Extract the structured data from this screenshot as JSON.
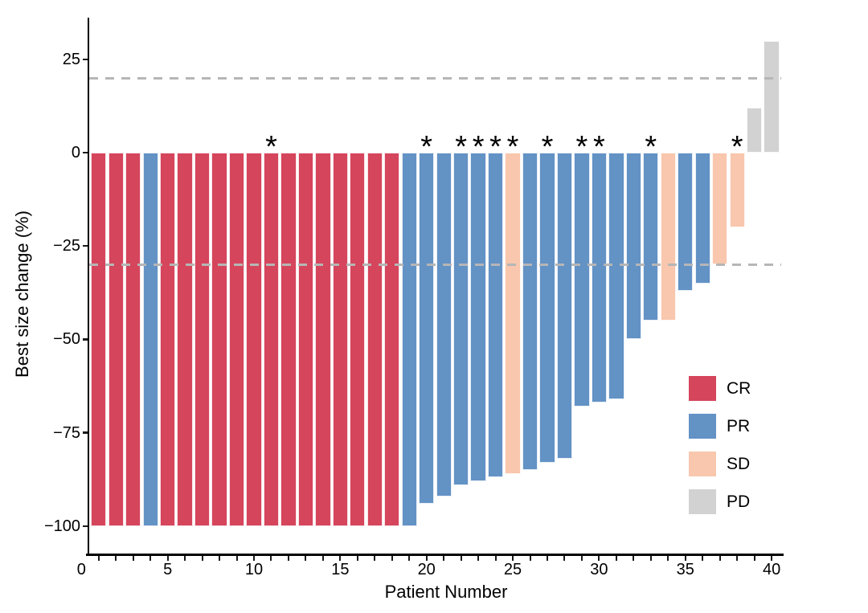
{
  "chart_data": {
    "type": "bar",
    "subtype": "waterfall",
    "title": "",
    "xlabel": "Patient Number",
    "ylabel": "Best size change (%)",
    "xlim": [
      0,
      40
    ],
    "ylim": [
      -107,
      33
    ],
    "grid": false,
    "x_major_ticks": [
      0,
      5,
      10,
      15,
      20,
      25,
      30,
      35,
      40
    ],
    "x_minor_tick_every": 1,
    "y_ticks": [
      25,
      0,
      -25,
      -50,
      -75,
      -100
    ],
    "y_tick_labels": [
      "25",
      "0",
      "−25",
      "−50",
      "−75",
      "−100"
    ],
    "reference_lines": [
      {
        "y": 20,
        "style": "dashed",
        "color": "#b6b6b6"
      },
      {
        "y": -30,
        "style": "dashed",
        "color": "#b6b6b6"
      }
    ],
    "annotation_symbol": "*",
    "annotation_meaning": "asterisk above bar",
    "legend_position": "right-lower",
    "legend": [
      {
        "label": "CR",
        "color": "#d5455c"
      },
      {
        "label": "PR",
        "color": "#6392c5"
      },
      {
        "label": "SD",
        "color": "#f8c7ad"
      },
      {
        "label": "PD",
        "color": "#d2d2d2"
      }
    ],
    "bar_width_fraction": 0.9,
    "patients": [
      {
        "n": 1,
        "value": -100,
        "response": "CR",
        "significant": false
      },
      {
        "n": 2,
        "value": -100,
        "response": "CR",
        "significant": false
      },
      {
        "n": 3,
        "value": -100,
        "response": "CR",
        "significant": false
      },
      {
        "n": 4,
        "value": -100,
        "response": "PR",
        "significant": false
      },
      {
        "n": 5,
        "value": -100,
        "response": "CR",
        "significant": false
      },
      {
        "n": 6,
        "value": -100,
        "response": "CR",
        "significant": false
      },
      {
        "n": 7,
        "value": -100,
        "response": "CR",
        "significant": false
      },
      {
        "n": 8,
        "value": -100,
        "response": "CR",
        "significant": false
      },
      {
        "n": 9,
        "value": -100,
        "response": "CR",
        "significant": false
      },
      {
        "n": 10,
        "value": -100,
        "response": "CR",
        "significant": false
      },
      {
        "n": 11,
        "value": -100,
        "response": "CR",
        "significant": true
      },
      {
        "n": 12,
        "value": -100,
        "response": "CR",
        "significant": false
      },
      {
        "n": 13,
        "value": -100,
        "response": "CR",
        "significant": false
      },
      {
        "n": 14,
        "value": -100,
        "response": "CR",
        "significant": false
      },
      {
        "n": 15,
        "value": -100,
        "response": "CR",
        "significant": false
      },
      {
        "n": 16,
        "value": -100,
        "response": "CR",
        "significant": false
      },
      {
        "n": 17,
        "value": -100,
        "response": "CR",
        "significant": false
      },
      {
        "n": 18,
        "value": -100,
        "response": "CR",
        "significant": false
      },
      {
        "n": 19,
        "value": -100,
        "response": "PR",
        "significant": false
      },
      {
        "n": 20,
        "value": -94,
        "response": "PR",
        "significant": true
      },
      {
        "n": 21,
        "value": -92,
        "response": "PR",
        "significant": false
      },
      {
        "n": 22,
        "value": -89,
        "response": "PR",
        "significant": true
      },
      {
        "n": 23,
        "value": -88,
        "response": "PR",
        "significant": true
      },
      {
        "n": 24,
        "value": -87,
        "response": "PR",
        "significant": true
      },
      {
        "n": 25,
        "value": -86,
        "response": "SD",
        "significant": true
      },
      {
        "n": 26,
        "value": -85,
        "response": "PR",
        "significant": false
      },
      {
        "n": 27,
        "value": -83,
        "response": "PR",
        "significant": true
      },
      {
        "n": 28,
        "value": -82,
        "response": "PR",
        "significant": false
      },
      {
        "n": 29,
        "value": -68,
        "response": "PR",
        "significant": true
      },
      {
        "n": 30,
        "value": -67,
        "response": "PR",
        "significant": true
      },
      {
        "n": 31,
        "value": -66,
        "response": "PR",
        "significant": false
      },
      {
        "n": 32,
        "value": -50,
        "response": "PR",
        "significant": false
      },
      {
        "n": 33,
        "value": -45,
        "response": "PR",
        "significant": true
      },
      {
        "n": 34,
        "value": -45,
        "response": "SD",
        "significant": false
      },
      {
        "n": 35,
        "value": -37,
        "response": "PR",
        "significant": false
      },
      {
        "n": 36,
        "value": -35,
        "response": "PR",
        "significant": false
      },
      {
        "n": 37,
        "value": -30,
        "response": "SD",
        "significant": false
      },
      {
        "n": 38,
        "value": -20,
        "response": "SD",
        "significant": true
      },
      {
        "n": 39,
        "value": 12,
        "response": "PD",
        "significant": false
      },
      {
        "n": 40,
        "value": 30,
        "response": "PD",
        "significant": false
      }
    ]
  }
}
